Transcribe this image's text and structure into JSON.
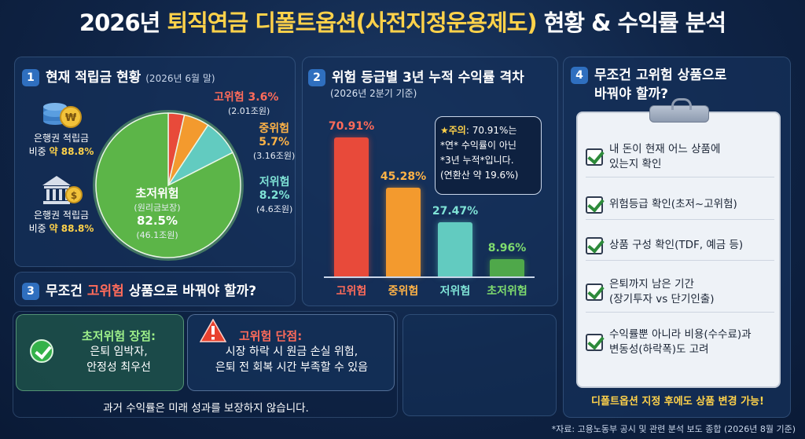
{
  "title": {
    "prefix": "2026년",
    "highlight": "퇴직연금 디폴트옵션(사전지정운용제도)",
    "suffix": "현황 & 수익률 분석"
  },
  "section1": {
    "num": "1",
    "title": "현재 적립금 현황",
    "sub": "(2026년 6월 말)",
    "bank_label_1": "은행권 적립금",
    "bank_share_1_prefix": "비중",
    "bank_share_1_value": "약 88.8%",
    "bank_label_2": "은행권 적립금",
    "bank_share_2_prefix": "비중",
    "bank_share_2_value": "약 88.8%",
    "coin_icon": "coin-stack-icon",
    "bank_icon": "bank-building-icon",
    "slices": [
      {
        "name": "고위험",
        "pct": "3.6%",
        "amount": "(2.01조원)",
        "value": 3.6,
        "color": "#e84a3a"
      },
      {
        "name": "중위험",
        "pct": "5.7%",
        "amount": "(3.16조원)",
        "value": 5.7,
        "color": "#f39a2e"
      },
      {
        "name": "저위험",
        "pct": "8.2%",
        "amount": "(4.6조원)",
        "value": 8.2,
        "color": "#62cbc0"
      },
      {
        "name": "초저위험",
        "sub": "(원리금보장)",
        "pct": "82.5%",
        "amount": "(46.1조원)",
        "value": 82.5,
        "color": "#5cb548"
      }
    ]
  },
  "section2": {
    "num": "2",
    "title": "위험 등급별 3년 누적 수익률 격차",
    "sub": "(2026년 2분기 기준)",
    "note": {
      "line1_prefix": "★주의",
      "line1_value": ": 70.91%는",
      "line2": "*연* 수익률이 아닌",
      "line3": "*3년 누적*입니다.",
      "line4": "(연환산 약 19.6%)"
    }
  },
  "chart_data": {
    "type": "bar",
    "categories": [
      "고위험",
      "중위험",
      "저위험",
      "초저위험"
    ],
    "values": [
      70.91,
      45.28,
      27.47,
      8.96
    ],
    "labels": [
      "70.91%",
      "45.28%",
      "27.47%",
      "8.96%"
    ],
    "colors": [
      "#e84a3a",
      "#f39a2e",
      "#62cbc0",
      "#4fa84a"
    ],
    "label_colors": [
      "#ff6b5a",
      "#ffb347",
      "#7fe3d6",
      "#7fdc6e"
    ],
    "ylim": [
      0,
      80
    ]
  },
  "section3": {
    "num": "3",
    "title_prefix": "무조건",
    "title_highlight": "고위험",
    "title_suffix": "상품으로 바꿔야 할까?",
    "pro_title": "초저위험 장점:",
    "pro_line1": "은퇴 임박자,",
    "pro_line2": "안정성 최우선",
    "con_title": "고위험 단점:",
    "con_line1": "시장 하락 시 원금 손실 위험,",
    "con_line2": "은퇴 전 회복 시간 부족할 수 있음",
    "disclaimer": "과거 수익률은 미래 성과를 보장하지 않습니다."
  },
  "section4": {
    "num": "4",
    "title_line1": "무조건 고위험 상품으로",
    "title_line2": "바꿔야 할까?",
    "checklist": [
      {
        "line1": "내 돈이 현재 어느 상품에",
        "line2": "있는지 확인"
      },
      {
        "line1": "위험등급 확인(초저~고위험)",
        "line2": ""
      },
      {
        "line1": "상품 구성 확인(TDF, 예금 등)",
        "line2": ""
      },
      {
        "line1": "은퇴까지 남은 기간",
        "line2": "(장기투자 vs 단기인출)"
      },
      {
        "line1": "수익률뿐 아니라 비용(수수료)과",
        "line2": "변동성(하락폭)도 고려"
      }
    ],
    "footer": "디폴트옵션 지정 후에도 상품 변경 가능!"
  },
  "source": "*자료: 고용노동부 공시 및 관련 분석 보도 종합 (2026년 8월 기준)"
}
